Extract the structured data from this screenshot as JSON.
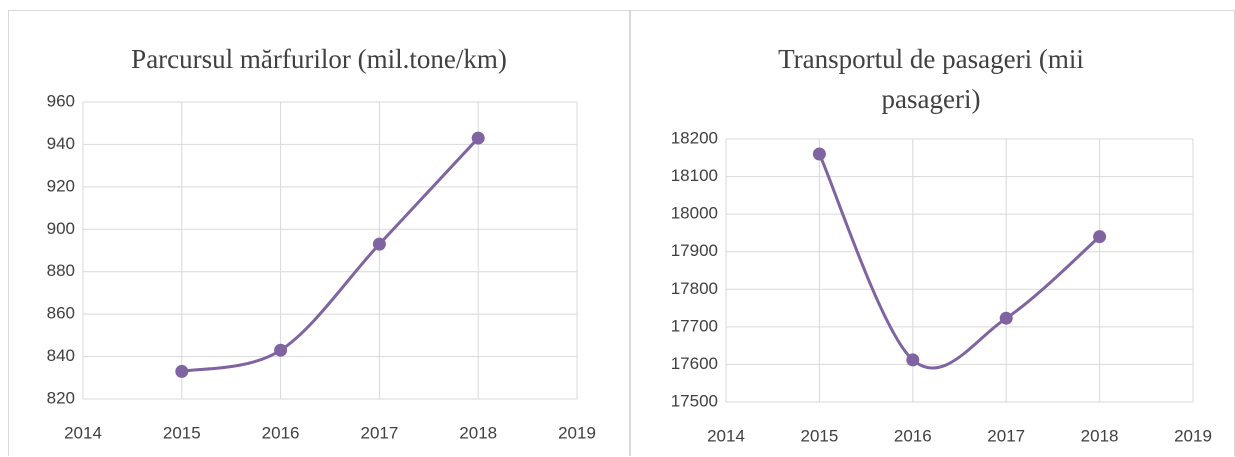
{
  "chart_data": [
    {
      "type": "line",
      "title": "Parcursul mărfurilor (mil.tone/km)",
      "x": [
        2015,
        2016,
        2017,
        2018
      ],
      "series": [
        {
          "name": "Parcursul mărfurilor",
          "color": "#8064a2",
          "values": [
            833,
            843,
            893,
            943
          ]
        }
      ],
      "xlim": [
        2014,
        2019
      ],
      "xticks": [
        2014,
        2015,
        2016,
        2017,
        2018,
        2019
      ],
      "ylim": [
        820,
        960
      ],
      "yticks": [
        820,
        840,
        860,
        880,
        900,
        920,
        940,
        960
      ],
      "grid": true,
      "smooth": true
    },
    {
      "type": "line",
      "title": "Transportul de pasageri (mii pasageri)",
      "x": [
        2015,
        2016,
        2017,
        2018
      ],
      "series": [
        {
          "name": "Transportul de pasageri",
          "color": "#8064a2",
          "values": [
            18160,
            17612,
            17723,
            17940
          ]
        }
      ],
      "xlim": [
        2014,
        2019
      ],
      "xticks": [
        2014,
        2015,
        2016,
        2017,
        2018,
        2019
      ],
      "ylim": [
        17500,
        18200
      ],
      "yticks": [
        17500,
        17600,
        17700,
        17800,
        17900,
        18000,
        18100,
        18200
      ],
      "grid": true,
      "smooth": true
    }
  ]
}
